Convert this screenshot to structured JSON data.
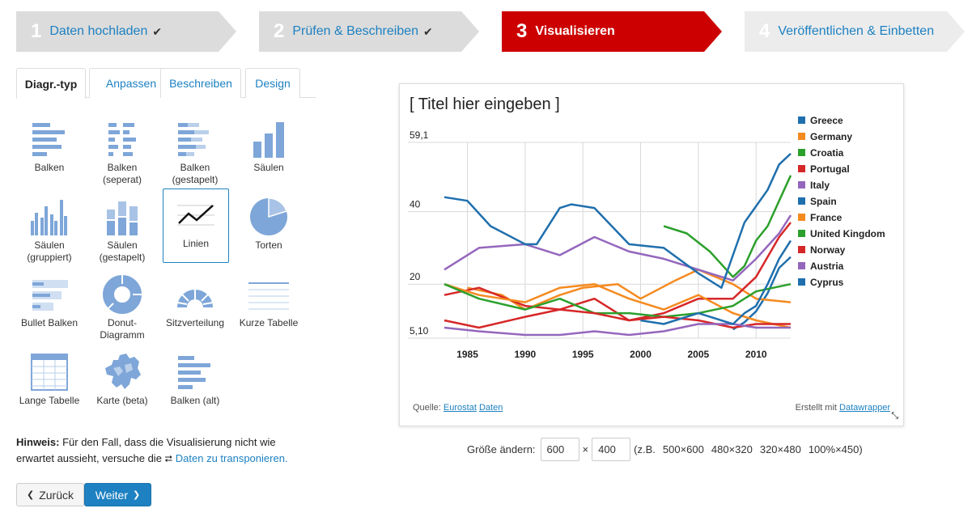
{
  "steps": [
    {
      "num": "1",
      "label": "Daten hochladen",
      "check": "✔"
    },
    {
      "num": "2",
      "label": "Prüfen & Beschreiben",
      "check": "✔"
    },
    {
      "num": "3",
      "label": "Visualisieren",
      "check": ""
    },
    {
      "num": "4",
      "label": "Veröffentlichen & Einbetten",
      "check": ""
    }
  ],
  "tabs": [
    "Diagr.-typ",
    "Anpassen",
    "Beschreiben",
    "Design"
  ],
  "chart_types": [
    {
      "l1": "Balken",
      "l2": ""
    },
    {
      "l1": "Balken",
      "l2": "(seperat)"
    },
    {
      "l1": "Balken",
      "l2": "(gestapelt)"
    },
    {
      "l1": "Säulen",
      "l2": ""
    },
    {
      "l1": "Säulen",
      "l2": "(gruppiert)"
    },
    {
      "l1": "Säulen",
      "l2": "(gestapelt)"
    },
    {
      "l1": "Linien",
      "l2": ""
    },
    {
      "l1": "Torten",
      "l2": ""
    },
    {
      "l1": "Bullet Balken",
      "l2": ""
    },
    {
      "l1": "Donut-",
      "l2": "Diagramm"
    },
    {
      "l1": "Sitzverteilung",
      "l2": ""
    },
    {
      "l1": "Kurze Tabelle",
      "l2": ""
    },
    {
      "l1": "Lange Tabelle",
      "l2": ""
    },
    {
      "l1": "Karte (beta)",
      "l2": ""
    },
    {
      "l1": "Balken (alt)",
      "l2": ""
    }
  ],
  "hint": {
    "bold": "Hinweis:",
    "text": " Für den Fall, dass die Visualisierung nicht wie erwartet aussieht, versuche die ",
    "link": "Daten zu transponieren."
  },
  "buttons": {
    "back": "Zurück",
    "next": "Weiter"
  },
  "preview": {
    "title": "[ Titel hier eingeben ]",
    "source_label": "Quelle:",
    "source_link1": "Eurostat",
    "source_link2": "Daten",
    "credit_label": "Erstellt mit",
    "credit_link": "Datawrapper"
  },
  "size": {
    "label": "Größe ändern:",
    "width": "600",
    "times": "×",
    "height": "400",
    "prefix": "(z.B.",
    "presets": [
      "500×600",
      "480×320",
      "320×480",
      "100%×450)"
    ]
  },
  "chart_data": {
    "type": "line",
    "title": "[ Titel hier eingeben ]",
    "xlim": [
      1983,
      2013
    ],
    "ylim": [
      5.1,
      59.1
    ],
    "x_ticks": [
      1985,
      1990,
      1995,
      2000,
      2005,
      2010
    ],
    "y_ticks": [
      {
        "v": 5.1,
        "t": "5,10"
      },
      {
        "v": 20,
        "t": "20"
      },
      {
        "v": 40,
        "t": "40"
      },
      {
        "v": 59.1,
        "t": "59,1"
      }
    ],
    "legend_position": "right",
    "series": [
      {
        "name": "Greece",
        "color": "#1f6fad",
        "x": [
          2008,
          2009,
          2010,
          2011,
          2012,
          2013
        ],
        "y": [
          7.5,
          9.5,
          12.5,
          17.5,
          24.5,
          27.5
        ]
      },
      {
        "name": "Germany",
        "color": "#f58a1f",
        "x": [
          1985,
          1988,
          1990,
          1993,
          1995,
          1998,
          2000,
          2003,
          2005,
          2008,
          2010,
          2013
        ],
        "y": [
          19,
          17,
          13,
          17,
          19,
          20,
          16,
          21,
          24,
          20,
          16,
          15
        ]
      },
      {
        "name": "Croatia",
        "color": "#2ca02c",
        "x": [
          2002,
          2004,
          2006,
          2008,
          2009,
          2010,
          2011,
          2012,
          2013
        ],
        "y": [
          36,
          34,
          29,
          22,
          25,
          32,
          36,
          43,
          50
        ]
      },
      {
        "name": "Portugal",
        "color": "#d62728",
        "x": [
          1983,
          1986,
          1990,
          1993,
          1996,
          1999,
          2002,
          2005,
          2008,
          2010,
          2012,
          2013
        ],
        "y": [
          17,
          19,
          14,
          13,
          16,
          10,
          12,
          16,
          16,
          22,
          33,
          37
        ]
      },
      {
        "name": "Italy",
        "color": "#9467bd",
        "x": [
          1983,
          1986,
          1990,
          1993,
          1996,
          1999,
          2002,
          2005,
          2008,
          2010,
          2012,
          2013
        ],
        "y": [
          24,
          30,
          31,
          28,
          33,
          29,
          27,
          24,
          21,
          27,
          34,
          39
        ]
      },
      {
        "name": "Spain",
        "color": "#1f6fad",
        "x": [
          1983,
          1985,
          1987,
          1990,
          1991,
          1993,
          1994,
          1996,
          1999,
          2002,
          2005,
          2007,
          2009,
          2011,
          2012,
          2013
        ],
        "y": [
          44,
          43,
          36,
          31,
          31,
          41,
          42,
          41,
          31,
          30,
          23,
          19,
          37,
          46,
          53,
          56
        ]
      },
      {
        "name": "France",
        "color": "#f58a1f",
        "x": [
          1983,
          1986,
          1990,
          1993,
          1996,
          1999,
          2002,
          2005,
          2008,
          2010,
          2013
        ],
        "y": [
          20,
          17,
          15,
          19,
          20,
          16,
          13,
          17,
          12,
          10,
          8
        ]
      },
      {
        "name": "United Kingdom",
        "color": "#2ca02c",
        "x": [
          1983,
          1986,
          1990,
          1993,
          1996,
          1999,
          2002,
          2005,
          2008,
          2010,
          2013
        ],
        "y": [
          20,
          16,
          13,
          16,
          12,
          12,
          11,
          12,
          14,
          18,
          20
        ]
      },
      {
        "name": "Norway",
        "color": "#d62728",
        "x": [
          1983,
          1986,
          1990,
          1993,
          1996,
          1999,
          2002,
          2005,
          2008,
          2010,
          2013
        ],
        "y": [
          10,
          8,
          11,
          13,
          12,
          10,
          11,
          10,
          8,
          9,
          9
        ]
      },
      {
        "name": "Austria",
        "color": "#9467bd",
        "x": [
          1983,
          1986,
          1990,
          1993,
          1996,
          1999,
          2002,
          2005,
          2008,
          2010,
          2013
        ],
        "y": [
          8,
          7,
          6,
          6,
          7,
          6,
          7,
          9,
          9,
          8,
          8
        ]
      },
      {
        "name": "Cyprus",
        "color": "#1f6fad",
        "x": [
          2000,
          2002,
          2005,
          2008,
          2009,
          2010,
          2011,
          2012,
          2013
        ],
        "y": [
          10,
          9,
          12,
          9,
          12,
          14,
          20,
          27,
          32
        ]
      }
    ]
  }
}
